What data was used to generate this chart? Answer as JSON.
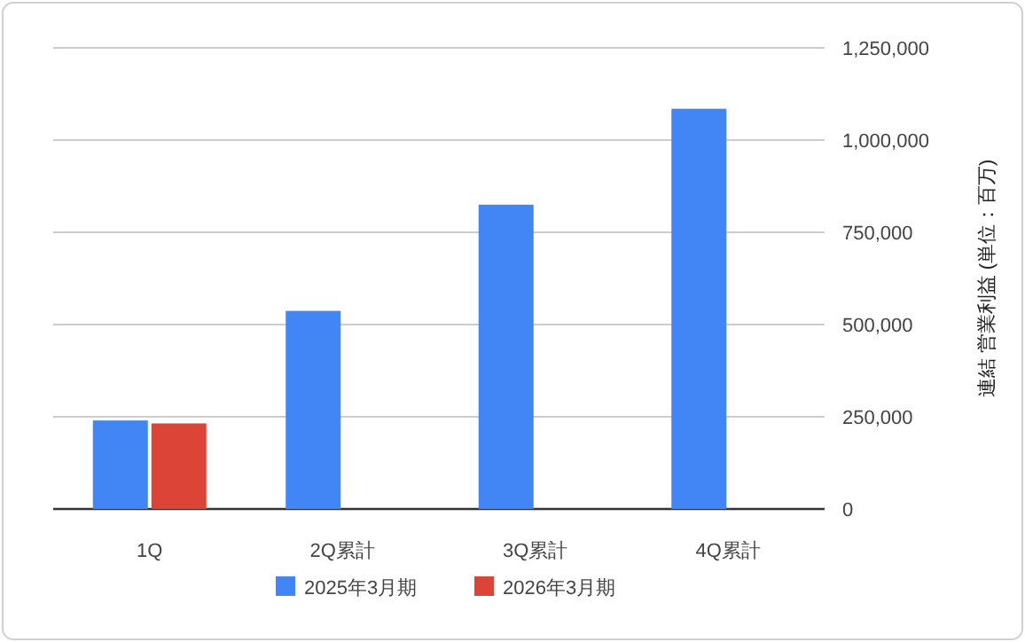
{
  "chart_data": {
    "type": "bar",
    "categories": [
      "1Q",
      "2Q累計",
      "3Q累計",
      "4Q累計"
    ],
    "series": [
      {
        "name": "2025年3月期",
        "color": "#4285f4",
        "values": [
          240000,
          537000,
          825000,
          1085000
        ]
      },
      {
        "name": "2026年3月期",
        "color": "#db4437",
        "values": [
          232000,
          null,
          null,
          null
        ]
      }
    ],
    "ylabel": "連結 営業利益 (単位：百万)",
    "ylim": [
      0,
      1250000
    ],
    "yticks": [
      {
        "value": 0,
        "label": "0"
      },
      {
        "value": 250000,
        "label": "250,000"
      },
      {
        "value": 500000,
        "label": "500,000"
      },
      {
        "value": 750000,
        "label": "750,000"
      },
      {
        "value": 1000000,
        "label": "1,000,000"
      },
      {
        "value": 1250000,
        "label": "1,250,000"
      }
    ],
    "grid": "y",
    "legend": "bottom"
  }
}
